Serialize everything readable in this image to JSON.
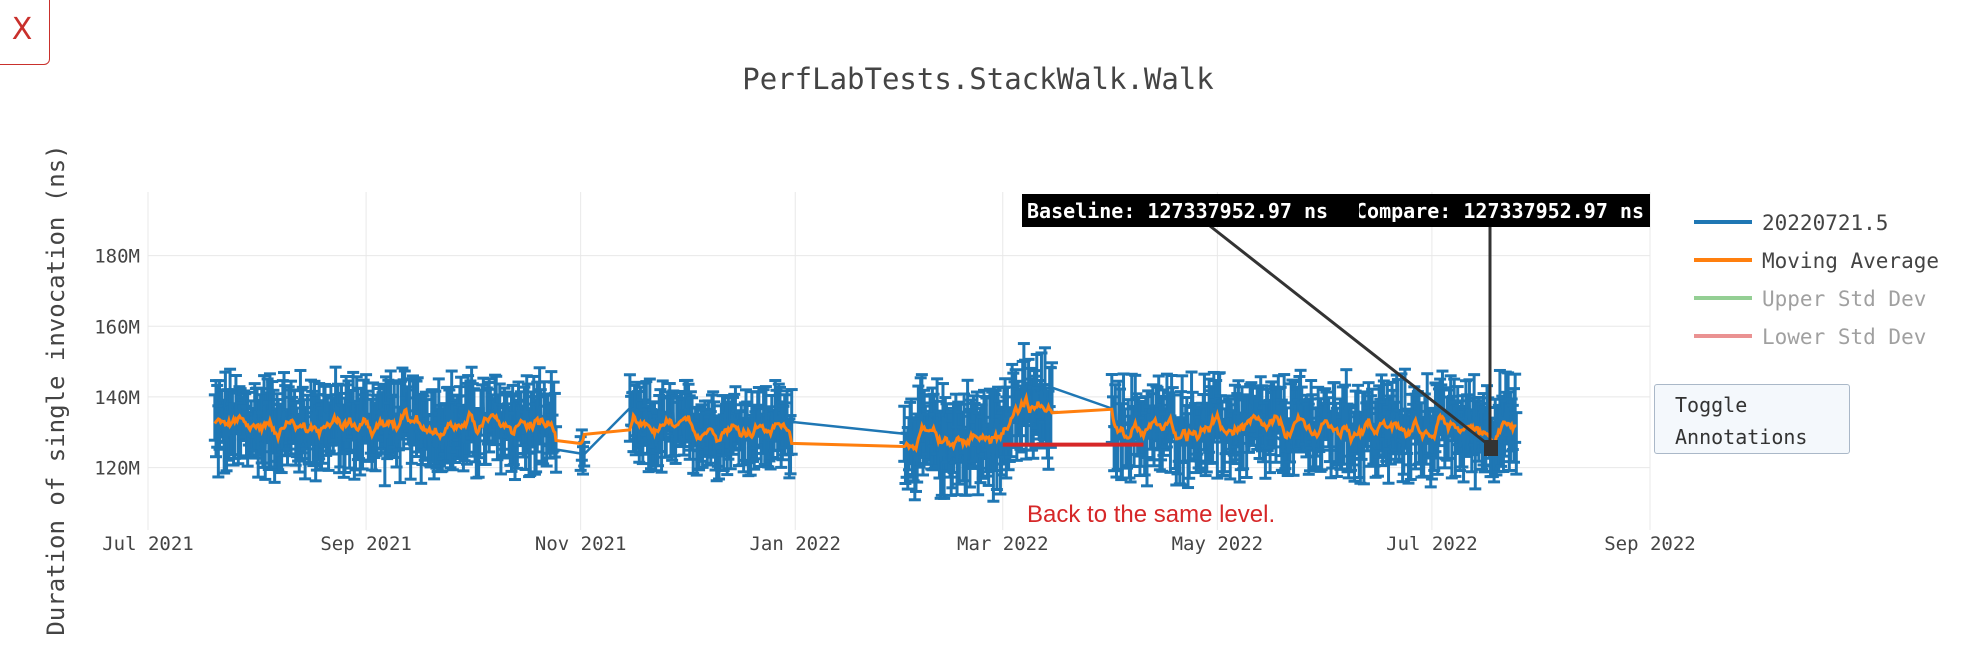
{
  "close_button": {
    "label": "X"
  },
  "toggle_button": {
    "label": "Toggle\nAnnotations"
  },
  "chart_data": {
    "type": "line",
    "title": "PerfLabTests.StackWalk.Walk",
    "xlabel": "",
    "ylabel": "Duration of single invocation (ns)",
    "x_ticks": [
      "Jul 2021",
      "Sep 2021",
      "Nov 2021",
      "Jan 2022",
      "Mar 2022",
      "May 2022",
      "Jul 2022",
      "Sep 2022"
    ],
    "xlim": [
      "2021-07-01",
      "2022-09-01"
    ],
    "y_ticks": [
      "120M",
      "140M",
      "160M",
      "180M"
    ],
    "ylim": [
      108000000,
      198000000
    ],
    "grid": true,
    "legend_position": "right",
    "series": [
      {
        "name": "20220721.5",
        "color": "#1f77b4",
        "error_bars": true,
        "visible": true,
        "segments": [
          {
            "from": "2021-07-20",
            "to": "2021-10-25",
            "mean": 132000000,
            "amp": 7000000,
            "err": 9000000
          },
          {
            "from": "2021-11-01",
            "to": "2021-11-02",
            "mean": 124000000,
            "amp": 3000000,
            "err": 4000000
          },
          {
            "from": "2021-11-15",
            "to": "2021-12-31",
            "mean": 131000000,
            "amp": 6000000,
            "err": 8000000
          },
          {
            "from": "2022-02-01",
            "to": "2022-03-01",
            "mean": 128000000,
            "amp": 7000000,
            "err": 10000000
          },
          {
            "from": "2022-03-01",
            "to": "2022-03-15",
            "mean": 136000000,
            "amp": 8000000,
            "err": 10000000
          },
          {
            "from": "2022-04-01",
            "to": "2022-07-25",
            "mean": 131000000,
            "amp": 7000000,
            "err": 9000000
          }
        ]
      },
      {
        "name": "Moving Average",
        "color": "#ff7f0e",
        "visible": true
      },
      {
        "name": "Upper Std Dev",
        "color": "#2ca02c",
        "visible": false
      },
      {
        "name": "Lower Std Dev",
        "color": "#d62728",
        "visible": false
      }
    ],
    "annotations": [
      {
        "text": "Baseline: 127337952.97 ns",
        "x": "2022-07-25",
        "y": 127337952.97
      },
      {
        "text": "Compare: 127337952.97 ns",
        "x": "2022-07-25",
        "y": 127337952.97
      }
    ],
    "shapes": [
      {
        "type": "line",
        "color": "#d62728",
        "x0": "2022-03-01",
        "x1": "2022-04-10",
        "y": 126500000
      }
    ],
    "notes": [
      {
        "text": "Back to the same level.",
        "color": "#d62728"
      }
    ]
  }
}
